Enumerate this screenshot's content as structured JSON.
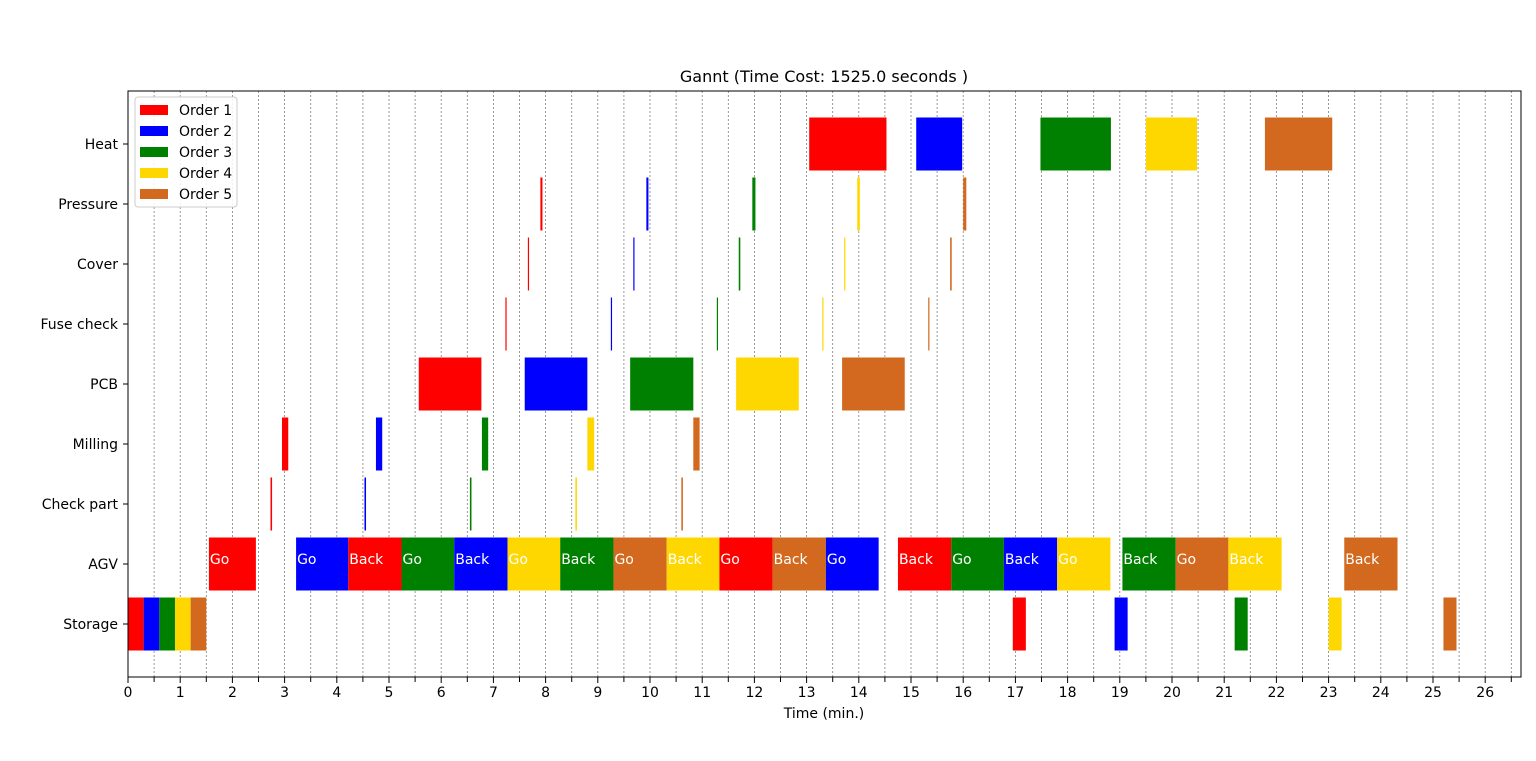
{
  "chart_data": {
    "type": "gantt",
    "title": "Gannt (Time Cost: 1525.0 seconds )",
    "xlabel": "Time (min.)",
    "ylabel": "",
    "xlim": [
      0,
      26.8
    ],
    "x_ticks": [
      0,
      1,
      2,
      3,
      4,
      5,
      6,
      7,
      8,
      9,
      10,
      11,
      12,
      13,
      14,
      15,
      16,
      17,
      18,
      19,
      20,
      21,
      22,
      23,
      24,
      25,
      26
    ],
    "grid": "vertical dashed gray lines every 0.5 min",
    "legend_position": "upper-left",
    "categories": [
      "Storage",
      "AGV",
      "Check part",
      "Milling",
      "PCB",
      "Fuse check",
      "Cover",
      "Pressure",
      "Heat"
    ],
    "series": [
      {
        "name": "Order 1",
        "color": "#ff0000"
      },
      {
        "name": "Order 2",
        "color": "#0000ff"
      },
      {
        "name": "Order 3",
        "color": "#008000"
      },
      {
        "name": "Order 4",
        "color": "#ffd700"
      },
      {
        "name": "Order 5",
        "color": "#d2691e"
      }
    ],
    "tasks": [
      {
        "row": "Heat",
        "order": 0,
        "start": 13.05,
        "end": 14.53,
        "label": ""
      },
      {
        "row": "Heat",
        "order": 1,
        "start": 15.1,
        "end": 15.98,
        "label": ""
      },
      {
        "row": "Heat",
        "order": 2,
        "start": 17.48,
        "end": 18.83,
        "label": ""
      },
      {
        "row": "Heat",
        "order": 3,
        "start": 19.5,
        "end": 20.48,
        "label": ""
      },
      {
        "row": "Heat",
        "order": 4,
        "start": 21.78,
        "end": 23.07,
        "label": ""
      },
      {
        "row": "Pressure",
        "order": 0,
        "start": 7.9,
        "end": 7.94,
        "label": ""
      },
      {
        "row": "Pressure",
        "order": 1,
        "start": 9.93,
        "end": 9.97,
        "label": ""
      },
      {
        "row": "Pressure",
        "order": 2,
        "start": 11.96,
        "end": 12.02,
        "label": ""
      },
      {
        "row": "Pressure",
        "order": 3,
        "start": 13.97,
        "end": 14.02,
        "label": ""
      },
      {
        "row": "Pressure",
        "order": 4,
        "start": 16.0,
        "end": 16.06,
        "label": ""
      },
      {
        "row": "Cover",
        "order": 0,
        "start": 7.66,
        "end": 7.68,
        "label": ""
      },
      {
        "row": "Cover",
        "order": 1,
        "start": 9.68,
        "end": 9.7,
        "label": ""
      },
      {
        "row": "Cover",
        "order": 2,
        "start": 11.7,
        "end": 11.73,
        "label": ""
      },
      {
        "row": "Cover",
        "order": 3,
        "start": 13.72,
        "end": 13.74,
        "label": ""
      },
      {
        "row": "Cover",
        "order": 4,
        "start": 15.75,
        "end": 15.78,
        "label": ""
      },
      {
        "row": "Fuse check",
        "order": 0,
        "start": 7.23,
        "end": 7.25,
        "label": ""
      },
      {
        "row": "Fuse check",
        "order": 1,
        "start": 9.25,
        "end": 9.27,
        "label": ""
      },
      {
        "row": "Fuse check",
        "order": 2,
        "start": 11.28,
        "end": 11.3,
        "label": ""
      },
      {
        "row": "Fuse check",
        "order": 3,
        "start": 13.3,
        "end": 13.32,
        "label": ""
      },
      {
        "row": "Fuse check",
        "order": 4,
        "start": 15.33,
        "end": 15.35,
        "label": ""
      },
      {
        "row": "PCB",
        "order": 0,
        "start": 5.57,
        "end": 6.77,
        "label": ""
      },
      {
        "row": "PCB",
        "order": 1,
        "start": 7.6,
        "end": 8.8,
        "label": ""
      },
      {
        "row": "PCB",
        "order": 2,
        "start": 9.62,
        "end": 10.83,
        "label": ""
      },
      {
        "row": "PCB",
        "order": 3,
        "start": 11.65,
        "end": 12.85,
        "label": ""
      },
      {
        "row": "PCB",
        "order": 4,
        "start": 13.68,
        "end": 14.88,
        "label": ""
      },
      {
        "row": "Milling",
        "order": 0,
        "start": 2.95,
        "end": 3.07,
        "label": ""
      },
      {
        "row": "Milling",
        "order": 1,
        "start": 4.75,
        "end": 4.87,
        "label": ""
      },
      {
        "row": "Milling",
        "order": 2,
        "start": 6.78,
        "end": 6.9,
        "label": ""
      },
      {
        "row": "Milling",
        "order": 3,
        "start": 8.8,
        "end": 8.93,
        "label": ""
      },
      {
        "row": "Milling",
        "order": 4,
        "start": 10.83,
        "end": 10.95,
        "label": ""
      },
      {
        "row": "Check part",
        "order": 0,
        "start": 2.73,
        "end": 2.76,
        "label": ""
      },
      {
        "row": "Check part",
        "order": 1,
        "start": 4.53,
        "end": 4.56,
        "label": ""
      },
      {
        "row": "Check part",
        "order": 2,
        "start": 6.55,
        "end": 6.58,
        "label": ""
      },
      {
        "row": "Check part",
        "order": 3,
        "start": 8.57,
        "end": 8.6,
        "label": ""
      },
      {
        "row": "Check part",
        "order": 4,
        "start": 10.6,
        "end": 10.63,
        "label": ""
      },
      {
        "row": "AGV",
        "order": 0,
        "start": 1.55,
        "end": 2.45,
        "label": "Go"
      },
      {
        "row": "AGV",
        "order": 1,
        "start": 3.22,
        "end": 4.22,
        "label": "Go"
      },
      {
        "row": "AGV",
        "order": 0,
        "start": 4.22,
        "end": 5.24,
        "label": "Back"
      },
      {
        "row": "AGV",
        "order": 2,
        "start": 5.24,
        "end": 6.25,
        "label": "Go"
      },
      {
        "row": "AGV",
        "order": 1,
        "start": 6.25,
        "end": 7.27,
        "label": "Back"
      },
      {
        "row": "AGV",
        "order": 3,
        "start": 7.27,
        "end": 8.28,
        "label": "Go"
      },
      {
        "row": "AGV",
        "order": 2,
        "start": 8.28,
        "end": 9.3,
        "label": "Back"
      },
      {
        "row": "AGV",
        "order": 4,
        "start": 9.3,
        "end": 10.32,
        "label": "Go"
      },
      {
        "row": "AGV",
        "order": 3,
        "start": 10.32,
        "end": 11.33,
        "label": "Back"
      },
      {
        "row": "AGV",
        "order": 0,
        "start": 11.33,
        "end": 12.35,
        "label": "Go"
      },
      {
        "row": "AGV",
        "order": 4,
        "start": 12.35,
        "end": 13.37,
        "label": "Back"
      },
      {
        "row": "AGV",
        "order": 1,
        "start": 13.37,
        "end": 14.38,
        "label": "Go"
      },
      {
        "row": "AGV",
        "order": 0,
        "start": 14.75,
        "end": 15.77,
        "label": "Back"
      },
      {
        "row": "AGV",
        "order": 2,
        "start": 15.77,
        "end": 16.78,
        "label": "Go"
      },
      {
        "row": "AGV",
        "order": 1,
        "start": 16.78,
        "end": 17.8,
        "label": "Back"
      },
      {
        "row": "AGV",
        "order": 3,
        "start": 17.8,
        "end": 18.82,
        "label": "Go"
      },
      {
        "row": "AGV",
        "order": 2,
        "start": 19.05,
        "end": 20.07,
        "label": "Back"
      },
      {
        "row": "AGV",
        "order": 4,
        "start": 20.07,
        "end": 21.08,
        "label": "Go"
      },
      {
        "row": "AGV",
        "order": 3,
        "start": 21.08,
        "end": 22.1,
        "label": "Back"
      },
      {
        "row": "AGV",
        "order": 4,
        "start": 23.3,
        "end": 24.32,
        "label": "Back"
      },
      {
        "row": "Storage",
        "order": 0,
        "start": 0.0,
        "end": 0.3,
        "label": ""
      },
      {
        "row": "Storage",
        "order": 1,
        "start": 0.3,
        "end": 0.6,
        "label": ""
      },
      {
        "row": "Storage",
        "order": 2,
        "start": 0.6,
        "end": 0.9,
        "label": ""
      },
      {
        "row": "Storage",
        "order": 3,
        "start": 0.9,
        "end": 1.2,
        "label": ""
      },
      {
        "row": "Storage",
        "order": 4,
        "start": 1.2,
        "end": 1.5,
        "label": ""
      },
      {
        "row": "Storage",
        "order": 0,
        "start": 16.95,
        "end": 17.2,
        "label": ""
      },
      {
        "row": "Storage",
        "order": 1,
        "start": 18.9,
        "end": 19.15,
        "label": ""
      },
      {
        "row": "Storage",
        "order": 2,
        "start": 21.2,
        "end": 21.45,
        "label": ""
      },
      {
        "row": "Storage",
        "order": 3,
        "start": 23.0,
        "end": 23.25,
        "label": ""
      },
      {
        "row": "Storage",
        "order": 4,
        "start": 25.2,
        "end": 25.45,
        "label": ""
      }
    ]
  }
}
